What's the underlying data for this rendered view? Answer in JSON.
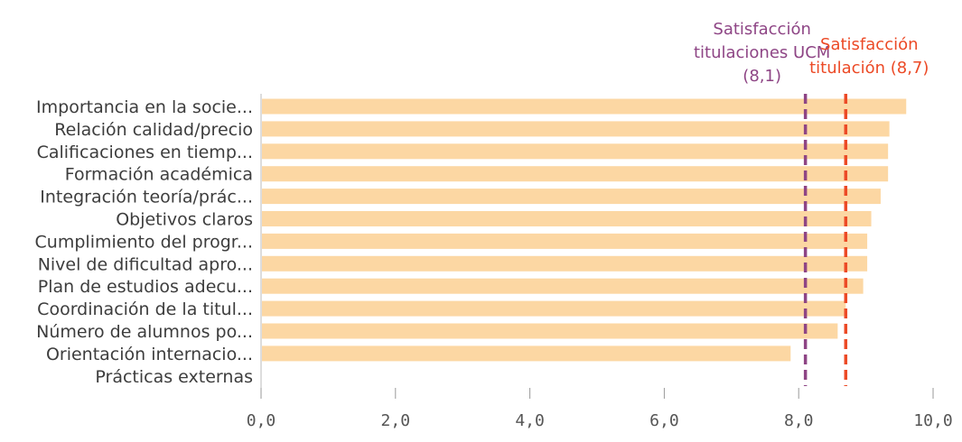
{
  "chart_data": {
    "type": "bar",
    "orientation": "horizontal",
    "categories": [
      "Importancia en la socie...",
      "Relación calidad/precio",
      "Calificaciones en tiemp...",
      "Formación académica",
      "Integración teoría/prác...",
      "Objetivos claros",
      "Cumplimiento del progr...",
      "Nivel de dificultad apro...",
      "Plan de estudios adecu...",
      "Coordinación de la titul...",
      "Número de alumnos po...",
      "Orientación internacio...",
      "Prácticas externas"
    ],
    "values": [
      9.6,
      9.35,
      9.33,
      9.33,
      9.22,
      9.08,
      9.02,
      9.02,
      8.96,
      8.7,
      8.58,
      7.88,
      null
    ],
    "xlim": [
      0,
      10
    ],
    "xticks": [
      0,
      2,
      4,
      6,
      8,
      10
    ],
    "xtick_labels": [
      "0,0",
      "2,0",
      "4,0",
      "6,0",
      "8,0",
      "10,0"
    ],
    "bar_color": "#fcd7a3",
    "reference_lines": [
      {
        "value": 8.1,
        "color": "#8e4585",
        "label_lines": [
          "Satisfacción",
          "titulaciones UCM",
          "(8,1)"
        ]
      },
      {
        "value": 8.7,
        "color": "#ec4a26",
        "label_lines": [
          "Satisfacción",
          "titulación (8,7)"
        ]
      }
    ],
    "grid": false
  }
}
